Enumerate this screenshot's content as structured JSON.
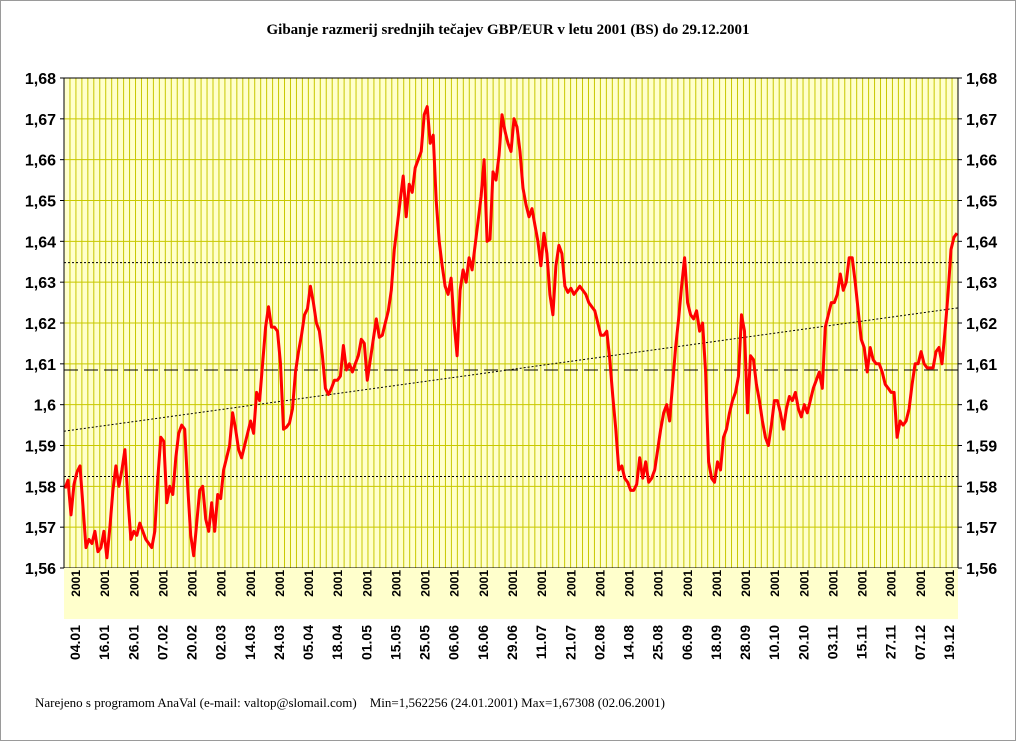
{
  "title": "Gibanje razmerij srednjih tečajev GBP/EUR v letu 2001 (BS) do 29.12.2001",
  "footer": {
    "credit": "Narejeno s programom AnaVal (e-mail: valtop@slomail.com)",
    "stats": "Min=1,562256 (24.01.2001) Max=1,67308 (02.06.2001)"
  },
  "colors": {
    "plot_bg": "#ffffcc",
    "grid": "#c8c800",
    "series": "#ff0000",
    "strip": "#c8c800"
  },
  "chart_data": {
    "type": "line",
    "title": "Gibanje razmerij srednjih tečajev GBP/EUR v letu 2001 (BS) do 29.12.2001",
    "xlabel": "",
    "ylabel": "",
    "ylim": [
      1.56,
      1.68
    ],
    "y_ticks": [
      "1,56",
      "1,57",
      "1,58",
      "1,59",
      "1,6",
      "1,61",
      "1,62",
      "1,63",
      "1,64",
      "1,65",
      "1,66",
      "1,67",
      "1,68"
    ],
    "y_tick_values": [
      1.56,
      1.57,
      1.58,
      1.59,
      1.6,
      1.61,
      1.62,
      1.63,
      1.64,
      1.65,
      1.66,
      1.67,
      1.68
    ],
    "x_tick_labels": [
      "04.01",
      "16.01",
      "26.01",
      "07.02",
      "20.02",
      "02.03",
      "14.03",
      "24.03",
      "05.04",
      "18.04",
      "01.05",
      "15.05",
      "25.05",
      "06.06",
      "16.06",
      "29.06",
      "11.07",
      "21.07",
      "02.08",
      "14.08",
      "25.08",
      "06.09",
      "18.09",
      "28.09",
      "10.10",
      "20.10",
      "03.11",
      "15.11",
      "27.11",
      "07.12",
      "19.12"
    ],
    "strip_label": "2001",
    "grid": true,
    "secondary_y_axis": true,
    "reference_lines": [
      {
        "kind": "mean",
        "value": 1.6085,
        "style": "long-dash"
      },
      {
        "kind": "upper",
        "value": 1.6348,
        "style": "dotted"
      },
      {
        "kind": "lower",
        "value": 1.5824,
        "style": "dotted"
      },
      {
        "kind": "trend",
        "start": 1.5935,
        "end": 1.6237,
        "style": "dotted"
      }
    ],
    "series": [
      {
        "values": [
          1.5795,
          1.5815,
          1.573,
          1.5805,
          1.5835,
          1.585,
          1.575,
          1.565,
          1.567,
          1.566,
          1.569,
          1.564,
          1.565,
          1.569,
          1.5625,
          1.57,
          1.579,
          1.585,
          1.58,
          1.584,
          1.589,
          1.577,
          1.567,
          1.569,
          1.568,
          1.571,
          1.569,
          1.567,
          1.566,
          1.565,
          1.569,
          1.582,
          1.592,
          1.591,
          1.576,
          1.58,
          1.578,
          1.587,
          1.593,
          1.595,
          1.594,
          1.58,
          1.568,
          1.563,
          1.571,
          1.579,
          1.58,
          1.572,
          1.569,
          1.576,
          1.569,
          1.578,
          1.577,
          1.584,
          1.587,
          1.59,
          1.598,
          1.594,
          1.589,
          1.587,
          1.59,
          1.593,
          1.596,
          1.593,
          1.603,
          1.601,
          1.61,
          1.619,
          1.624,
          1.619,
          1.619,
          1.618,
          1.61,
          1.594,
          1.5945,
          1.5955,
          1.599,
          1.608,
          1.613,
          1.617,
          1.622,
          1.6235,
          1.629,
          1.625,
          1.62,
          1.618,
          1.612,
          1.604,
          1.6025,
          1.604,
          1.606,
          1.606,
          1.607,
          1.6145,
          1.6085,
          1.61,
          1.608,
          1.61,
          1.612,
          1.616,
          1.615,
          1.606,
          1.611,
          1.616,
          1.621,
          1.6165,
          1.617,
          1.62,
          1.623,
          1.628,
          1.638,
          1.644,
          1.65,
          1.656,
          1.646,
          1.654,
          1.652,
          1.658,
          1.66,
          1.662,
          1.671,
          1.673,
          1.664,
          1.666,
          1.65,
          1.64,
          1.634,
          1.629,
          1.627,
          1.631,
          1.62,
          1.612,
          1.628,
          1.633,
          1.63,
          1.636,
          1.633,
          1.639,
          1.645,
          1.651,
          1.66,
          1.64,
          1.6405,
          1.657,
          1.655,
          1.661,
          1.671,
          1.667,
          1.664,
          1.662,
          1.67,
          1.668,
          1.662,
          1.653,
          1.649,
          1.646,
          1.648,
          1.644,
          1.64,
          1.634,
          1.642,
          1.637,
          1.627,
          1.622,
          1.634,
          1.639,
          1.637,
          1.629,
          1.6275,
          1.6285,
          1.627,
          1.628,
          1.629,
          1.628,
          1.627,
          1.625,
          1.624,
          1.623,
          1.62,
          1.617,
          1.617,
          1.618,
          1.611,
          1.602,
          1.594,
          1.584,
          1.585,
          1.582,
          1.581,
          1.579,
          1.579,
          1.5805,
          1.587,
          1.582,
          1.586,
          1.581,
          1.582,
          1.584,
          1.589,
          1.594,
          1.598,
          1.6,
          1.596,
          1.605,
          1.614,
          1.621,
          1.629,
          1.636,
          1.625,
          1.622,
          1.621,
          1.623,
          1.618,
          1.62,
          1.608,
          1.586,
          1.582,
          1.581,
          1.586,
          1.584,
          1.592,
          1.594,
          1.598,
          1.601,
          1.603,
          1.607,
          1.622,
          1.618,
          1.598,
          1.612,
          1.611,
          1.605,
          1.601,
          1.596,
          1.592,
          1.59,
          1.595,
          1.601,
          1.601,
          1.598,
          1.594,
          1.599,
          1.602,
          1.601,
          1.603,
          1.599,
          1.597,
          1.6,
          1.598,
          1.601,
          1.604,
          1.606,
          1.608,
          1.604,
          1.619,
          1.622,
          1.625,
          1.625,
          1.627,
          1.632,
          1.628,
          1.63,
          1.636,
          1.636,
          1.63,
          1.623,
          1.616,
          1.614,
          1.608,
          1.614,
          1.611,
          1.61,
          1.61,
          1.608,
          1.605,
          1.604,
          1.603,
          1.603,
          1.592,
          1.596,
          1.595,
          1.596,
          1.599,
          1.605,
          1.61,
          1.61,
          1.613,
          1.61,
          1.609,
          1.609,
          1.609,
          1.613,
          1.614,
          1.61,
          1.618,
          1.627,
          1.638,
          1.641,
          1.642
        ]
      }
    ]
  }
}
